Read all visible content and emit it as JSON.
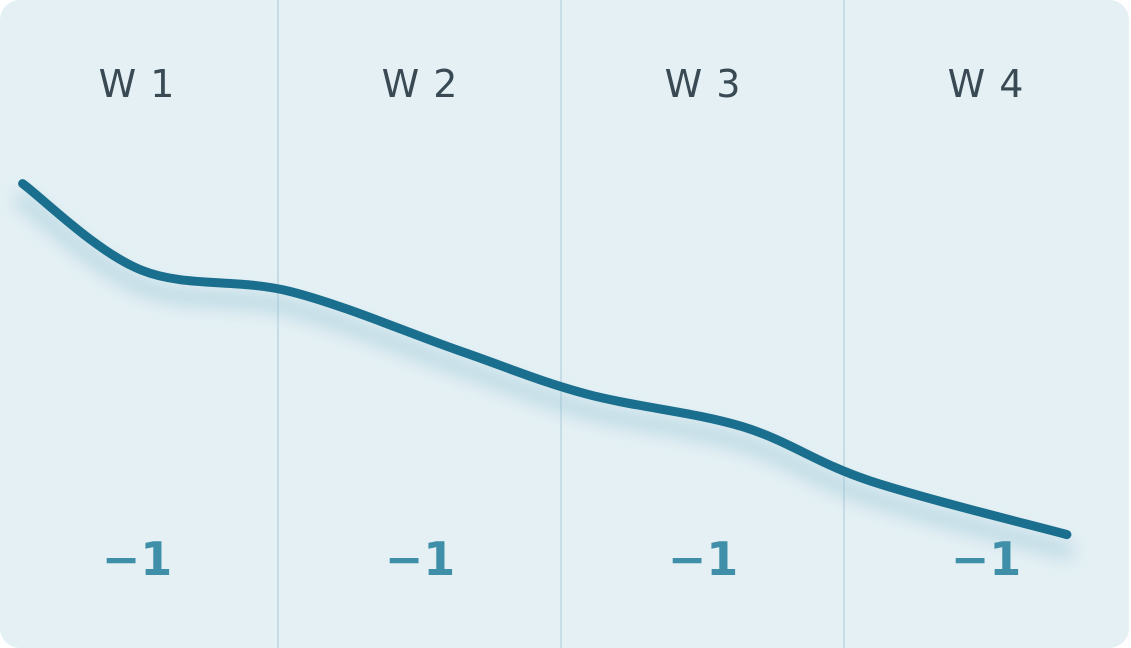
{
  "chart_data": {
    "type": "line",
    "categories": [
      "W 1",
      "W 2",
      "W 3",
      "W 4"
    ],
    "deltas": [
      "−1",
      "−1",
      "−1",
      "−1"
    ],
    "series": [
      {
        "x": [
          0,
          0.42,
          0.95,
          1.55,
          2.0,
          2.55,
          3.0,
          3.7
        ],
        "values": [
          8.6,
          7.0,
          6.6,
          5.5,
          4.7,
          4.1,
          3.1,
          2.1
        ]
      }
    ],
    "xlim": [
      -0.08,
      3.92
    ],
    "ylim": [
      0,
      12
    ],
    "line_color": "#1a6f8e",
    "grid": "vertical dividers between weeks"
  }
}
